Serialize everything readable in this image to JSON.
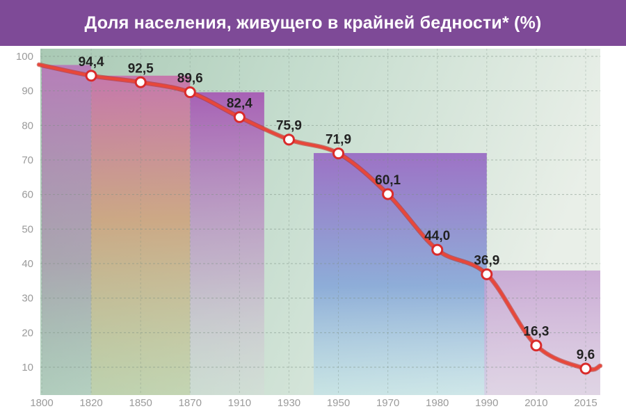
{
  "title": "Доля населения, живущего в крайней бедности* (%)",
  "colors": {
    "title_bar": "#7e4a97",
    "line": "#e8473a",
    "marker_fill": "#ffffff",
    "marker_stroke": "#d92b2b"
  },
  "chart_data": {
    "type": "line",
    "title": "Доля населения, живущего в крайней бедности* (%)",
    "xlabel": "",
    "ylabel": "",
    "categories": [
      "1800",
      "1820",
      "1850",
      "1870",
      "1910",
      "1930",
      "1950",
      "1970",
      "1980",
      "1990",
      "2010",
      "2015"
    ],
    "yticks": [
      "100",
      "90",
      "80",
      "70",
      "60",
      "50",
      "40",
      "30",
      "20",
      "10"
    ],
    "ylim": [
      5,
      100
    ],
    "grid": "dashed",
    "series": [
      {
        "values": [
          97.5,
          94.4,
          92.5,
          89.6,
          82.4,
          75.9,
          71.9,
          60.1,
          44.0,
          36.9,
          16.3,
          9.6
        ],
        "labels": [
          "",
          "94,4",
          "92,5",
          "89,6",
          "82,4",
          "75,9",
          "71,9",
          "60,1",
          "44,0",
          "36,9",
          "16,3",
          "9,6"
        ],
        "marked": [
          false,
          true,
          true,
          true,
          true,
          true,
          true,
          true,
          true,
          true,
          true,
          true
        ]
      }
    ]
  }
}
